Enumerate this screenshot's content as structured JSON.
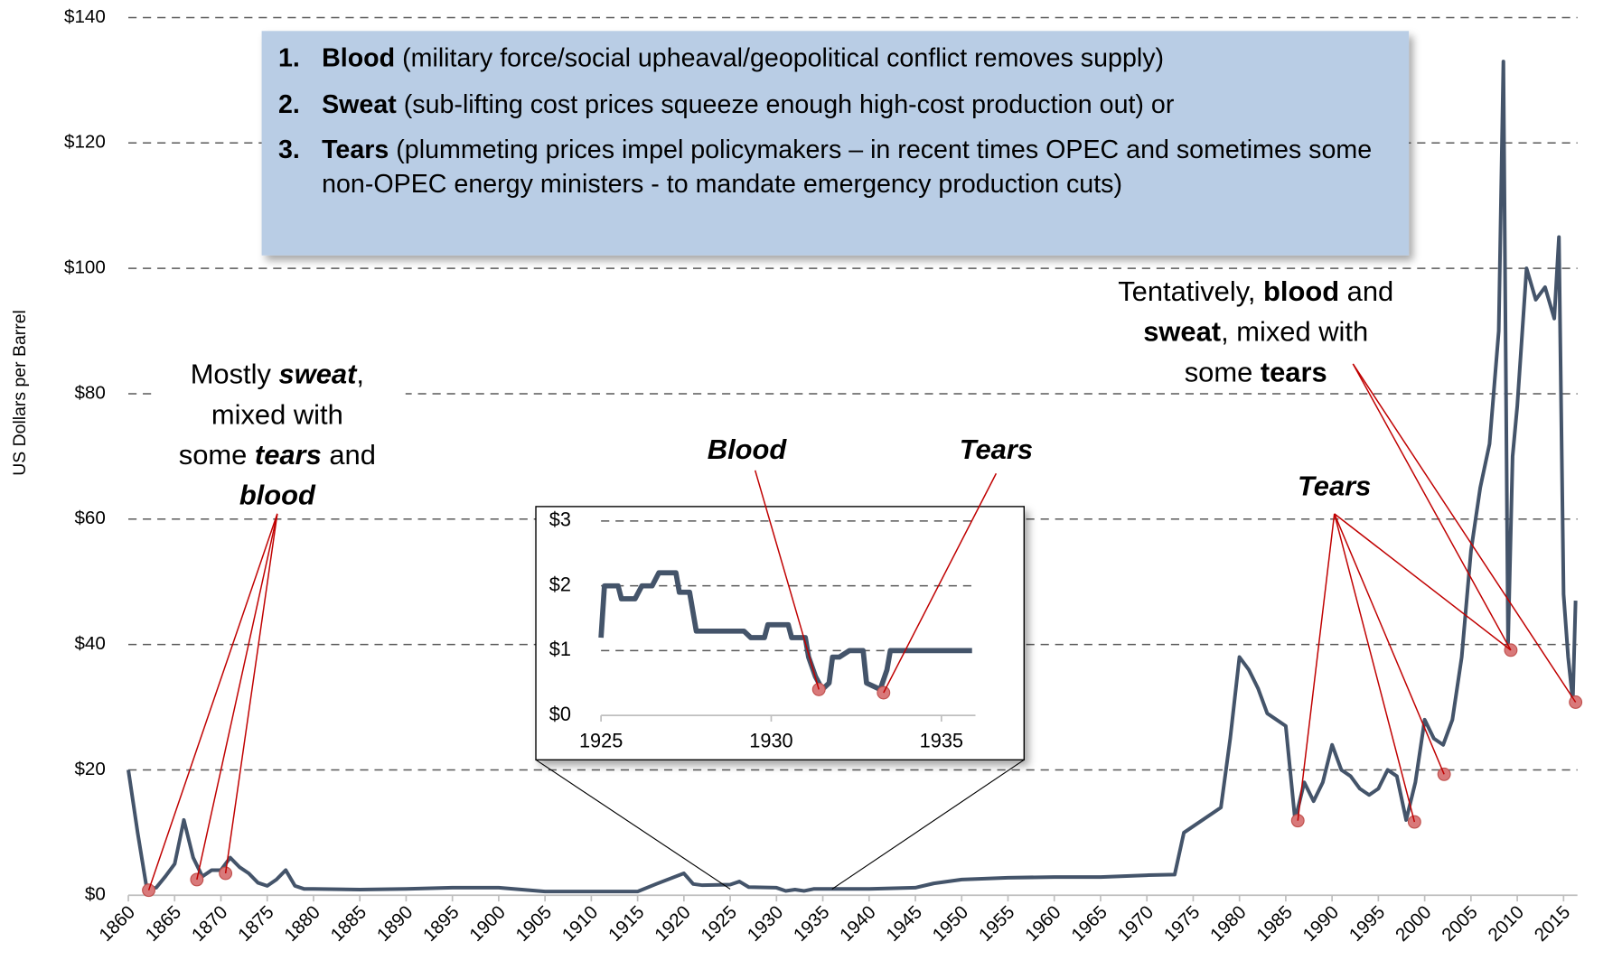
{
  "chart_data": [
    {
      "type": "line",
      "y_label": "US Dollars per Barrel",
      "color": "#44546a",
      "x": [
        1860,
        1861,
        1862,
        1863,
        1864,
        1865,
        1866,
        1867,
        1868,
        1869,
        1870,
        1871,
        1872,
        1873,
        1874,
        1875,
        1876,
        1877,
        1878,
        1879,
        1880,
        1885,
        1890,
        1895,
        1900,
        1905,
        1910,
        1915,
        1917,
        1920,
        1921,
        1922,
        1925,
        1926,
        1927,
        1930,
        1931,
        1932,
        1933,
        1934,
        1940,
        1945,
        1947,
        1950,
        1955,
        1960,
        1965,
        1970,
        1973,
        1974,
        1975,
        1978,
        1979,
        1980,
        1981,
        1982,
        1983,
        1984,
        1985,
        1986,
        1987,
        1988,
        1989,
        1990,
        1991,
        1992,
        1993,
        1994,
        1995,
        1996,
        1997,
        1998,
        1999,
        2000,
        2001,
        2002,
        2003,
        2004,
        2005,
        2006,
        2007,
        2008,
        2008.5,
        2009,
        2009.5,
        2010,
        2011,
        2012,
        2013,
        2014,
        2014.5,
        2015,
        2015.5,
        2016,
        2016.3
      ],
      "values": [
        20,
        10,
        1,
        1.2,
        3,
        5,
        12,
        6,
        3,
        4,
        4,
        6,
        4.5,
        3.5,
        2,
        1.5,
        2.5,
        4,
        1.5,
        1,
        1,
        0.9,
        1,
        1.2,
        1.2,
        0.6,
        0.6,
        0.6,
        1.8,
        3.5,
        1.8,
        1.6,
        1.7,
        2.2,
        1.3,
        1.2,
        0.7,
        0.9,
        0.7,
        1,
        1,
        1.2,
        1.9,
        2.5,
        2.8,
        2.9,
        2.9,
        3.2,
        3.3,
        10,
        11,
        14,
        25,
        38,
        36,
        33,
        29,
        28,
        27,
        12,
        18,
        15,
        18,
        24,
        20,
        19,
        17,
        16,
        17,
        20,
        19,
        12,
        18,
        28,
        25,
        24,
        28,
        38,
        55,
        65,
        72,
        90,
        133,
        40,
        70,
        78,
        100,
        95,
        97,
        92,
        105,
        48,
        38,
        31,
        47
      ],
      "highlights": {
        "color": "#c0504d",
        "x": [
          1862.2,
          1867.4,
          1870.5,
          1986.3,
          1998.9,
          2002.1,
          2009.3,
          2016.3
        ],
        "values": [
          0.8,
          2.5,
          3.5,
          11.9,
          11.7,
          19.3,
          39.1,
          30.8
        ]
      },
      "xlim": [
        1860,
        2016.5
      ],
      "xticks": [
        1860,
        1865,
        1870,
        1875,
        1880,
        1885,
        1890,
        1895,
        1900,
        1905,
        1910,
        1915,
        1920,
        1925,
        1930,
        1935,
        1940,
        1945,
        1950,
        1955,
        1960,
        1965,
        1970,
        1975,
        1980,
        1985,
        1990,
        1995,
        2000,
        2005,
        2010,
        2015
      ],
      "ylim": [
        0,
        140
      ],
      "yticks": [
        {
          "value": 0,
          "label": "$0"
        },
        {
          "value": 20,
          "label": "$20"
        },
        {
          "value": 40,
          "label": "$40"
        },
        {
          "value": 60,
          "label": "$60"
        },
        {
          "value": 80,
          "label": "$80"
        },
        {
          "value": 100,
          "label": "$100"
        },
        {
          "value": 120,
          "label": "$120"
        },
        {
          "value": 140,
          "label": "$140"
        }
      ],
      "grid": true
    },
    {
      "type": "line",
      "color": "#44546a",
      "x": [
        1925,
        1925.1,
        1925.5,
        1925.6,
        1926,
        1926.2,
        1926.5,
        1926.7,
        1927.2,
        1927.3,
        1927.6,
        1927.8,
        1929,
        1929.2,
        1929.4,
        1929.8,
        1929.9,
        1930.5,
        1930.6,
        1931,
        1931.1,
        1931.3,
        1931.5,
        1931.7,
        1931.8,
        1932,
        1932.3,
        1932.7,
        1932.8,
        1933.2,
        1933.4,
        1933.5,
        1935.9
      ],
      "values": [
        1.2,
        2,
        2,
        1.8,
        1.8,
        2,
        2,
        2.2,
        2.2,
        1.9,
        1.9,
        1.3,
        1.3,
        1.3,
        1.2,
        1.2,
        1.4,
        1.4,
        1.2,
        1.2,
        0.9,
        0.6,
        0.4,
        0.5,
        0.9,
        0.9,
        1,
        1,
        0.5,
        0.4,
        0.7,
        1,
        1
      ],
      "highlights": {
        "color": "#c0504d",
        "x": [
          1931.4,
          1933.3
        ],
        "values": [
          0.4,
          0.35
        ]
      },
      "xlim": [
        1925,
        1936
      ],
      "xticks": [
        1925,
        1930,
        1935
      ],
      "ylim": [
        0,
        3
      ],
      "yticks": [
        {
          "value": 0,
          "label": "$0"
        },
        {
          "value": 1,
          "label": "$1"
        },
        {
          "value": 2,
          "label": "$2"
        },
        {
          "value": 3,
          "label": "$3"
        }
      ],
      "grid": true
    }
  ],
  "box": {
    "items": [
      {
        "number": "1.",
        "term": "Blood",
        "text": " (military force/social upheaval/geopolitical conflict removes supply)"
      },
      {
        "number": "2.",
        "term": "Sweat",
        "text": " (sub-lifting cost prices squeeze enough high-cost production out) or"
      },
      {
        "number": "3.",
        "term": "Tears",
        "text": " (plummeting prices impel policymakers – in recent times OPEC and sometimes some non-OPEC energy ministers - to mandate emergency production cuts)"
      }
    ]
  },
  "annotations": [
    {
      "lines": [
        [
          {
            "text": "Mostly "
          },
          {
            "text": "sweat",
            "style": "bold-italic"
          },
          {
            "text": ","
          }
        ],
        [
          {
            "text": "mixed with"
          }
        ],
        [
          {
            "text": "some "
          },
          {
            "text": "tears",
            "style": "bold-italic"
          },
          {
            "text": " and"
          }
        ],
        [
          {
            "text": "blood",
            "style": "bold-italic"
          }
        ]
      ]
    },
    {
      "lines": [
        [
          {
            "text": "Blood",
            "style": "bold-italic"
          }
        ]
      ]
    },
    {
      "lines": [
        [
          {
            "text": "Tears",
            "style": "bold-italic"
          }
        ]
      ]
    },
    {
      "lines": [
        [
          {
            "text": "Tears",
            "style": "bold-italic"
          }
        ]
      ]
    },
    {
      "lines": [
        [
          {
            "text": "Tentatively, "
          },
          {
            "text": "blood",
            "style": "bold"
          },
          {
            "text": " and"
          }
        ],
        [
          {
            "text": "sweat",
            "style": "bold"
          },
          {
            "text": ", mixed with"
          }
        ],
        [
          {
            "text": "some "
          },
          {
            "text": "tears",
            "style": "bold"
          }
        ]
      ]
    }
  ]
}
